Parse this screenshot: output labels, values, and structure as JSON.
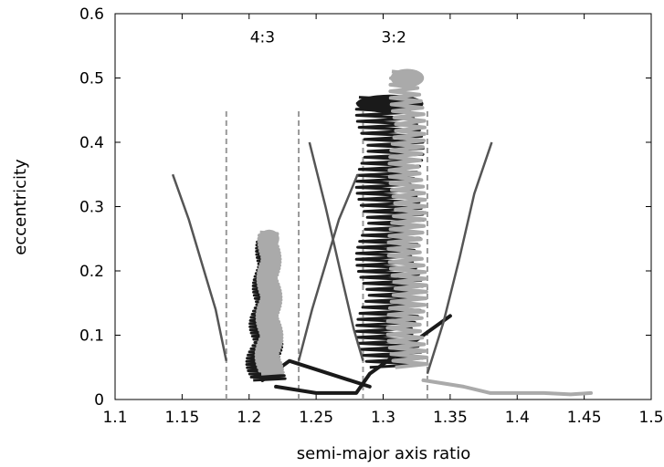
{
  "chart_data": {
    "type": "scatter",
    "xlabel": "semi-major axis ratio",
    "ylabel": "eccentricity",
    "xlim": [
      1.1,
      1.5
    ],
    "ylim": [
      0,
      0.6
    ],
    "x_ticks": [
      "1.1",
      "1.15",
      "1.2",
      "1.25",
      "1.3",
      "1.35",
      "1.4",
      "1.45",
      "1.5"
    ],
    "y_ticks": [
      "0",
      "0.1",
      "0.2",
      "0.3",
      "0.4",
      "0.5",
      "0.6"
    ],
    "grid": false,
    "legend": "none",
    "annotations": [
      {
        "text": "4:3",
        "x": 1.21,
        "y": 0.555
      },
      {
        "text": "3:2",
        "x": 1.308,
        "y": 0.555
      }
    ],
    "resonance_lines": [
      {
        "x": 1.183,
        "ymax": 0.45,
        "color": "#999999"
      },
      {
        "x": 1.237,
        "ymax": 0.45,
        "color": "#999999"
      },
      {
        "x": 1.285,
        "ymax": 0.45,
        "color": "#999999"
      },
      {
        "x": 1.333,
        "ymax": 0.45,
        "color": "#999999"
      }
    ],
    "separatrices": [
      {
        "color": "#555555",
        "points": [
          [
            1.143,
            0.35
          ],
          [
            1.155,
            0.28
          ],
          [
            1.165,
            0.21
          ],
          [
            1.175,
            0.14
          ],
          [
            1.183,
            0.06
          ]
        ]
      },
      {
        "color": "#555555",
        "points": [
          [
            1.237,
            0.06
          ],
          [
            1.247,
            0.14
          ],
          [
            1.257,
            0.21
          ],
          [
            1.267,
            0.28
          ],
          [
            1.281,
            0.35
          ]
        ]
      },
      {
        "color": "#555555",
        "points": [
          [
            1.245,
            0.4
          ],
          [
            1.257,
            0.3
          ],
          [
            1.268,
            0.2
          ],
          [
            1.278,
            0.11
          ],
          [
            1.285,
            0.06
          ]
        ]
      },
      {
        "color": "#555555",
        "points": [
          [
            1.333,
            0.04
          ],
          [
            1.345,
            0.12
          ],
          [
            1.357,
            0.22
          ],
          [
            1.368,
            0.32
          ],
          [
            1.381,
            0.4
          ]
        ]
      }
    ],
    "series": [
      {
        "color": "#1a1a1a",
        "segments": [
          {
            "x_center": 1.212,
            "y_top": 0.25,
            "y_bottom": 0.03,
            "width_top": 0.012,
            "width_bottom": 0.03
          },
          {
            "x_center": 1.305,
            "y_top": 0.47,
            "y_bottom": 0.05,
            "width_top": 0.05,
            "width_bottom": 0.05
          }
        ],
        "tails": [
          [
            [
              1.22,
              0.02
            ],
            [
              1.25,
              0.01
            ],
            [
              1.28,
              0.01
            ],
            [
              1.29,
              0.04
            ],
            [
              1.31,
              0.07
            ],
            [
              1.33,
              0.1
            ],
            [
              1.35,
              0.13
            ]
          ],
          [
            [
              1.21,
              0.03
            ],
            [
              1.23,
              0.06
            ],
            [
              1.26,
              0.04
            ],
            [
              1.29,
              0.02
            ]
          ]
        ]
      },
      {
        "color": "#aaaaaa",
        "segments": [
          {
            "x_center": 1.215,
            "y_top": 0.26,
            "y_bottom": 0.04,
            "width_top": 0.015,
            "width_bottom": 0.02
          },
          {
            "x_center": 1.318,
            "y_top": 0.51,
            "y_bottom": 0.05,
            "width_top": 0.025,
            "width_bottom": 0.03
          }
        ],
        "tails": [
          [
            [
              1.33,
              0.03
            ],
            [
              1.36,
              0.02
            ],
            [
              1.38,
              0.01
            ],
            [
              1.4,
              0.01
            ],
            [
              1.42,
              0.01
            ],
            [
              1.44,
              0.008
            ],
            [
              1.455,
              0.01
            ]
          ]
        ]
      }
    ]
  }
}
